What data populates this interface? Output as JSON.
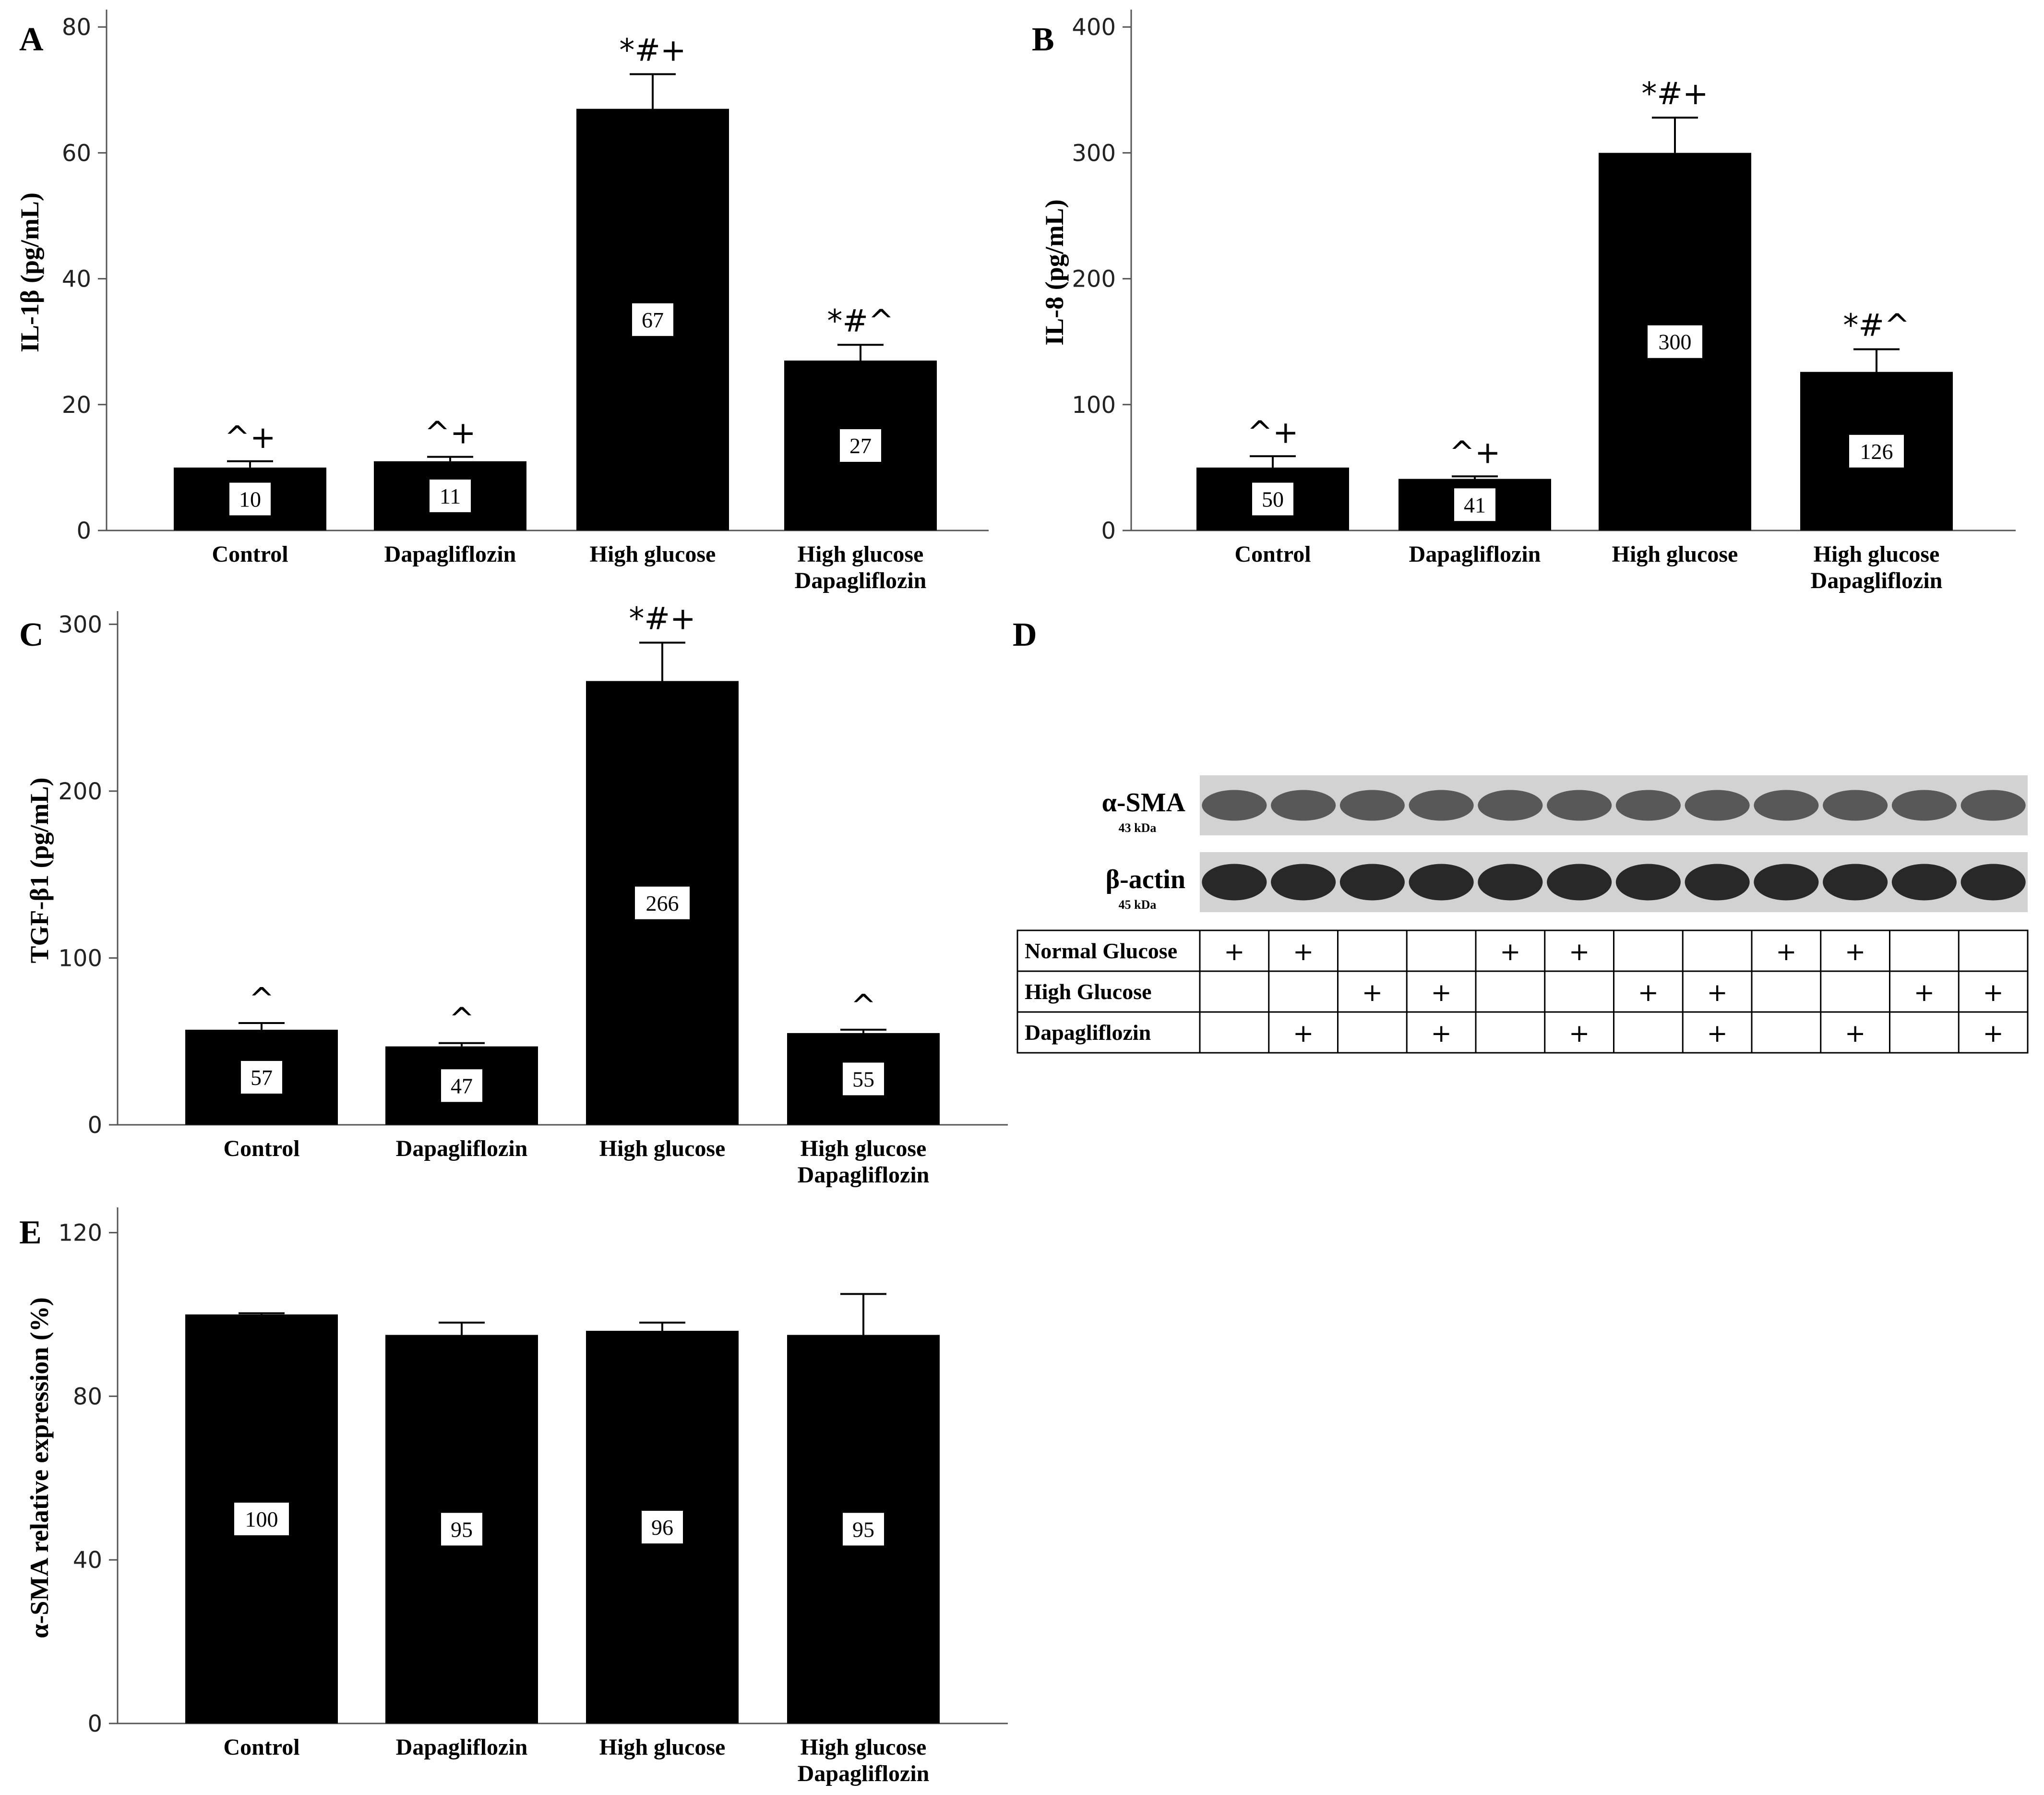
{
  "chart_data": [
    {
      "panel": "A",
      "type": "bar",
      "categories": [
        [
          "Control"
        ],
        [
          "Dapagliflozin"
        ],
        [
          "High glucose"
        ],
        [
          "High glucose",
          "Dapagliflozin"
        ]
      ],
      "values": [
        10,
        11,
        67,
        27
      ],
      "errors": [
        1,
        0.7,
        5.5,
        2.5
      ],
      "value_labels": [
        "10",
        "11",
        "67",
        "27"
      ],
      "annotations": [
        "^+",
        "^+",
        "*#+",
        "*#^"
      ],
      "ylabel": "IL-1β (pg/mL)",
      "yticks": [
        0,
        20,
        40,
        60,
        80
      ],
      "ylim": [
        0,
        82
      ]
    },
    {
      "panel": "B",
      "type": "bar",
      "categories": [
        [
          "Control"
        ],
        [
          "Dapagliflozin"
        ],
        [
          "High glucose"
        ],
        [
          "High glucose",
          "Dapagliflozin"
        ]
      ],
      "values": [
        50,
        41,
        300,
        126
      ],
      "errors": [
        9,
        2,
        28,
        18
      ],
      "value_labels": [
        "50",
        "41",
        "300",
        "126"
      ],
      "annotations": [
        "^+",
        "^+",
        "*#+",
        "*#^"
      ],
      "ylabel": "IL-8 (pg/mL)",
      "yticks": [
        0,
        100,
        200,
        300,
        400
      ],
      "ylim": [
        0,
        410
      ]
    },
    {
      "panel": "C",
      "type": "bar",
      "categories": [
        [
          "Control"
        ],
        [
          "Dapagliflozin"
        ],
        [
          "High glucose"
        ],
        [
          "High glucose",
          "Dapagliflozin"
        ]
      ],
      "values": [
        57,
        47,
        266,
        55
      ],
      "errors": [
        4,
        2,
        23,
        2
      ],
      "value_labels": [
        "57",
        "47",
        "266",
        "55"
      ],
      "annotations": [
        "^",
        "^",
        "*#+",
        "^"
      ],
      "ylabel": "TGF-β1 (pg/mL)",
      "yticks": [
        0,
        100,
        200,
        300
      ],
      "ylim": [
        0,
        305
      ]
    },
    {
      "panel": "E",
      "type": "bar",
      "categories": [
        [
          "Control"
        ],
        [
          "Dapagliflozin"
        ],
        [
          "High glucose"
        ],
        [
          "High glucose",
          "Dapagliflozin"
        ]
      ],
      "values": [
        100,
        95,
        96,
        95
      ],
      "errors": [
        0.3,
        3,
        2,
        10
      ],
      "value_labels": [
        "100",
        "95",
        "96",
        "95"
      ],
      "annotations": [
        "",
        "",
        "",
        ""
      ],
      "ylabel": "α-SMA relative expression (%)",
      "yticks": [
        0,
        40,
        80,
        120
      ],
      "ylim": [
        0,
        125
      ]
    }
  ],
  "blot": {
    "panel": "D",
    "bands": [
      {
        "label": "α-SMA",
        "kda": "43 kDa"
      },
      {
        "label": "β-actin",
        "kda": "45 kDa"
      }
    ],
    "rows": [
      {
        "label": "Normal Glucose",
        "marks": [
          1,
          1,
          0,
          0,
          1,
          1,
          0,
          0,
          1,
          1,
          0,
          0
        ]
      },
      {
        "label": "High Glucose",
        "marks": [
          0,
          0,
          1,
          1,
          0,
          0,
          1,
          1,
          0,
          0,
          1,
          1
        ]
      },
      {
        "label": "Dapagliflozin",
        "marks": [
          0,
          1,
          0,
          1,
          0,
          1,
          0,
          1,
          0,
          1,
          0,
          1
        ]
      }
    ],
    "mark_symbol": "+"
  }
}
